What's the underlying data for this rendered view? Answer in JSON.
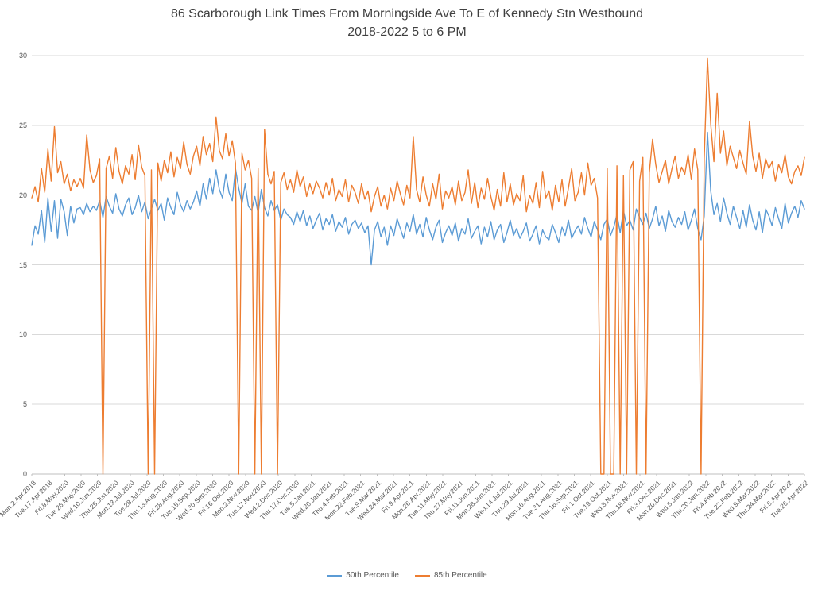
{
  "title": {
    "line1": "86 Scarborough Link Times From Morningside Ave To E of Kennedy Stn Westbound",
    "line2": "2018-2022 5 to 6 PM"
  },
  "colors": {
    "series_50th": "#5B9BD5",
    "series_85th": "#ED7D31",
    "grid": "#D9D9D9",
    "axis": "#BFBFBF",
    "tick_text": "#595959",
    "title_text": "#404040"
  },
  "chart_data": {
    "type": "line",
    "title": "86 Scarborough Link Times From Morningside Ave To E of Kennedy Stn Westbound 2018-2022 5 to 6 PM",
    "xlabel": "",
    "ylabel": "",
    "ylim": [
      0,
      30
    ],
    "yticks": [
      0,
      5,
      10,
      15,
      20,
      25,
      30
    ],
    "grid": true,
    "legend_position": "bottom",
    "categories": [
      "Mon.2.Apr.2018",
      "Tue.17.Apr.2018",
      "Fri.8.May.2020",
      "Tue.26.May.2020",
      "Wed.10.Jun.2020",
      "Thu.25.Jun.2020",
      "Mon.13.Jul.2020",
      "Tue.28.Jul.2020",
      "Thu.13.Aug.2020",
      "Fri.28.Aug.2020",
      "Tue.15.Sep.2020",
      "Wed.30.Sep.2020",
      "Fri.16.Oct.2020",
      "Mon.2.Nov.2020",
      "Tue.17.Nov.2020",
      "Wed.2.Dec.2020",
      "Thu.17.Dec.2020",
      "Tue.5.Jan.2021",
      "Wed.20.Jan.2021",
      "Thu.4.Feb.2021",
      "Mon.22.Feb.2021",
      "Tue.9.Mar.2021",
      "Wed.24.Mar.2021",
      "Fri.9.Apr.2021",
      "Mon.26.Apr.2021",
      "Tue.11.May.2021",
      "Thu.27.May.2021",
      "Fri.11.Jun.2021",
      "Mon.28.Jun.2021",
      "Wed.14.Jul.2021",
      "Thu.29.Jul.2021",
      "Mon.16.Aug.2021",
      "Tue.31.Aug.2021",
      "Thu.16.Sep.2021",
      "Fri.1.Oct.2021",
      "Tue.19.Oct.2021",
      "Wed.3.Nov.2021",
      "Thu.18.Nov.2021",
      "Fri.3.Dec.2021",
      "Mon.20.Dec.2021",
      "Wed.5.Jan.2022",
      "Thu.20.Jan.2022",
      "Fri.4.Feb.2022",
      "Tue.22.Feb.2022",
      "Wed.9.Mar.2022",
      "Thu.24.Mar.2022",
      "Fri.8.Apr.2022",
      "Tue.26.Apr.2022"
    ],
    "series": [
      {
        "name": "50th Percentile",
        "color": "#5B9BD5",
        "values": [
          16.4,
          17.8,
          17.2,
          18.9,
          16.6,
          19.8,
          17.4,
          19.6,
          16.9,
          19.7,
          18.8,
          17.1,
          19.2,
          18.0,
          19.0,
          19.1,
          18.6,
          19.4,
          18.8,
          19.2,
          18.9,
          19.6,
          18.4,
          19.9,
          19.2,
          18.7,
          20.1,
          19.0,
          18.5,
          19.3,
          19.8,
          18.6,
          19.1,
          20.0,
          18.8,
          19.5,
          18.3,
          19.0,
          19.7,
          18.9,
          19.4,
          18.2,
          19.8,
          19.1,
          18.6,
          20.2,
          19.3,
          18.8,
          19.6,
          19.0,
          19.5,
          20.3,
          19.2,
          20.8,
          19.7,
          21.2,
          20.1,
          21.8,
          20.4,
          19.8,
          21.5,
          20.2,
          19.6,
          21.9,
          20.5,
          19.4,
          20.8,
          19.2,
          18.9,
          19.9,
          18.7,
          20.4,
          19.1,
          18.5,
          19.6,
          18.9,
          19.3,
          18.2,
          19.0,
          18.6,
          18.4,
          17.9,
          18.8,
          18.1,
          18.9,
          17.8,
          18.5,
          17.6,
          18.2,
          18.7,
          17.5,
          18.3,
          17.9,
          18.6,
          17.4,
          18.1,
          17.7,
          18.4,
          17.2,
          17.9,
          18.2,
          17.6,
          18.0,
          17.3,
          17.8,
          15.0,
          17.5,
          18.1,
          17.0,
          17.7,
          16.4,
          17.8,
          17.1,
          18.3,
          17.6,
          16.9,
          18.0,
          17.4,
          18.6,
          17.2,
          17.9,
          17.0,
          18.4,
          17.5,
          16.8,
          17.7,
          18.2,
          16.6,
          17.3,
          17.8,
          17.1,
          18.0,
          16.7,
          17.6,
          17.2,
          18.3,
          16.9,
          17.4,
          17.8,
          16.5,
          17.7,
          17.0,
          18.1,
          16.8,
          17.5,
          17.9,
          16.6,
          17.3,
          18.2,
          17.1,
          17.6,
          16.9,
          17.4,
          18.0,
          16.7,
          17.2,
          17.8,
          16.5,
          17.5,
          17.0,
          16.8,
          17.9,
          17.3,
          16.6,
          17.7,
          17.1,
          18.2,
          16.9,
          17.4,
          17.8,
          17.2,
          18.4,
          17.6,
          17.0,
          18.1,
          17.5,
          16.8,
          17.9,
          18.3,
          17.1,
          17.7,
          18.6,
          17.3,
          18.9,
          17.8,
          18.2,
          17.5,
          19.0,
          18.4,
          17.9,
          18.7,
          17.6,
          18.3,
          19.2,
          17.8,
          18.5,
          17.4,
          18.9,
          18.1,
          17.7,
          18.4,
          17.9,
          18.8,
          17.5,
          18.2,
          19.0,
          17.6,
          16.8,
          18.5,
          24.5,
          20.3,
          18.6,
          19.4,
          18.1,
          19.8,
          18.7,
          17.9,
          19.2,
          18.4,
          17.6,
          18.9,
          17.7,
          19.3,
          18.2,
          17.5,
          18.8,
          17.3,
          19.0,
          18.5,
          17.8,
          19.1,
          18.3,
          17.6,
          19.4,
          18.0,
          18.7,
          19.2,
          18.4,
          19.6,
          19.0
        ]
      },
      {
        "name": "85th Percentile",
        "color": "#ED7D31",
        "values": [
          19.8,
          20.6,
          19.5,
          21.9,
          20.2,
          23.3,
          21.0,
          24.9,
          21.6,
          22.4,
          20.8,
          21.5,
          20.3,
          21.1,
          20.6,
          21.2,
          20.5,
          24.3,
          21.8,
          20.9,
          21.4,
          22.6,
          0,
          21.9,
          22.8,
          21.2,
          23.4,
          21.7,
          20.8,
          22.1,
          21.5,
          22.9,
          21.1,
          23.6,
          22.0,
          21.4,
          0,
          21.8,
          0,
          22.3,
          21.0,
          22.5,
          21.6,
          23.1,
          21.3,
          22.7,
          21.9,
          23.8,
          22.2,
          21.5,
          22.8,
          23.5,
          22.1,
          24.2,
          22.9,
          23.7,
          22.4,
          25.6,
          23.2,
          22.6,
          24.4,
          22.8,
          23.9,
          22.3,
          0,
          23.0,
          21.8,
          22.5,
          21.2,
          0,
          21.9,
          0,
          24.7,
          21.5,
          20.8,
          21.7,
          0,
          20.9,
          21.6,
          20.4,
          21.1,
          20.2,
          21.8,
          20.6,
          21.3,
          19.9,
          20.8,
          20.1,
          21.0,
          20.5,
          19.8,
          20.9,
          20.0,
          21.2,
          19.6,
          20.4,
          19.9,
          21.1,
          19.5,
          20.7,
          20.2,
          19.4,
          20.8,
          19.7,
          20.3,
          18.8,
          19.9,
          20.6,
          19.2,
          20.0,
          19.0,
          20.5,
          19.6,
          21.0,
          20.1,
          19.3,
          20.7,
          19.8,
          24.2,
          20.4,
          19.5,
          21.3,
          20.0,
          19.2,
          20.8,
          19.7,
          21.5,
          19.0,
          20.3,
          19.8,
          20.6,
          19.3,
          21.0,
          19.6,
          20.2,
          21.8,
          19.4,
          20.9,
          19.1,
          20.5,
          19.7,
          21.2,
          19.9,
          18.9,
          20.4,
          19.2,
          21.6,
          19.5,
          20.8,
          19.3,
          20.1,
          19.6,
          21.4,
          18.8,
          20.0,
          19.4,
          20.9,
          19.1,
          21.7,
          19.8,
          20.3,
          18.9,
          20.7,
          19.5,
          21.1,
          19.2,
          20.5,
          21.9,
          19.6,
          20.2,
          21.6,
          20.0,
          22.3,
          20.7,
          21.2,
          19.8,
          0,
          0,
          21.9,
          0,
          0,
          22.1,
          0,
          21.4,
          0,
          21.8,
          22.4,
          0,
          21.0,
          22.7,
          0,
          21.6,
          24.0,
          22.2,
          20.9,
          21.7,
          22.5,
          20.8,
          21.9,
          22.8,
          21.2,
          22.0,
          21.5,
          22.9,
          21.1,
          23.3,
          21.8,
          0,
          22.6,
          29.8,
          25.1,
          22.4,
          27.3,
          23.0,
          24.6,
          22.1,
          23.5,
          22.7,
          21.9,
          23.2,
          22.3,
          21.5,
          25.3,
          22.8,
          21.7,
          23.0,
          21.2,
          22.6,
          21.9,
          22.4,
          21.0,
          22.2,
          21.6,
          22.9,
          21.3,
          20.8,
          21.7,
          22.1,
          21.4,
          22.7
        ]
      }
    ]
  }
}
